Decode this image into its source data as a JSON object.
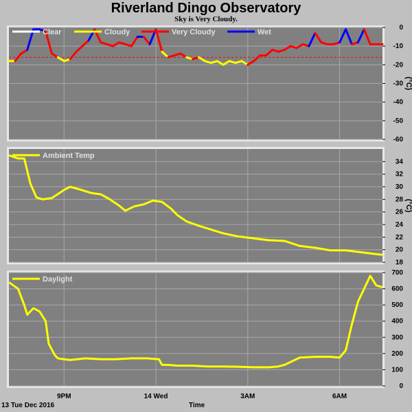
{
  "title": "Riverland Dingo Observatory",
  "subtitle": "Sky is Very Cloudy.",
  "footer": {
    "date_label": "13 Tue Dec 2016",
    "time_label": "Time"
  },
  "colors": {
    "panel": "#808080",
    "grid": "#a8a8a8",
    "clear": "#ffffff",
    "cloudy": "#ffff00",
    "very_cloudy": "#ff0000",
    "wet": "#0000ff",
    "threshold": "#ff0000"
  },
  "chart_data": [
    {
      "type": "line",
      "unit": "(°C)",
      "ylim": [
        -60,
        0
      ],
      "yticks": [
        0,
        -10,
        -20,
        -30,
        -40,
        -50,
        -60
      ],
      "xticks": [
        "9PM",
        "14 Wed",
        "3AM",
        "6AM"
      ],
      "legend": [
        "Clear",
        "Cloudy",
        "Very Cloudy",
        "Wet"
      ],
      "legend_colors": [
        "#ffffff",
        "#ffff00",
        "#ff0000",
        "#0000ff"
      ],
      "threshold": -16,
      "x_hours": [
        0,
        0.2,
        0.4,
        0.6,
        0.8,
        1.0,
        1.2,
        1.4,
        1.6,
        1.8,
        2.0,
        2.2,
        2.4,
        2.6,
        2.8,
        3.0,
        3.2,
        3.4,
        3.6,
        3.8,
        4.0,
        4.2,
        4.4,
        4.6,
        4.8,
        5.0,
        5.2,
        5.4,
        5.6,
        5.8,
        6.0,
        6.2,
        6.4,
        6.6,
        6.8,
        7.0,
        7.2,
        7.4,
        7.6,
        7.8,
        8.0,
        8.2,
        8.4,
        8.6,
        8.8,
        9.0,
        9.2,
        9.4,
        9.6,
        9.8,
        10.0,
        10.2,
        10.4,
        10.6,
        10.8,
        11.0,
        11.2,
        11.4,
        11.6,
        11.8,
        12.0,
        12.2
      ],
      "values": [
        -18,
        -18,
        -14,
        -12,
        -1,
        -1,
        -2,
        -14,
        -16,
        -18,
        -17,
        -13,
        -10,
        -7,
        -1,
        -8,
        -9,
        -10,
        -8,
        -9,
        -10,
        -5,
        -5,
        -9,
        -1,
        -13,
        -16,
        -15,
        -14,
        -16,
        -17,
        -16,
        -18,
        -19,
        -18,
        -20,
        -18,
        -19,
        -18,
        -20,
        -18,
        -15,
        -15,
        -12,
        -13,
        -12,
        -10,
        -11,
        -9,
        -10,
        -3,
        -8,
        -9,
        -9,
        -8,
        -1,
        -9,
        -8,
        -1,
        -9,
        -9,
        -9
      ],
      "conditions": [
        "Cloudy",
        "Cloudy",
        "Very Cloudy",
        "Very Cloudy",
        "Wet",
        "Wet",
        "Wet",
        "Very Cloudy",
        "Very Cloudy",
        "Cloudy",
        "Cloudy",
        "Very Cloudy",
        "Very Cloudy",
        "Very Cloudy",
        "Wet",
        "Very Cloudy",
        "Very Cloudy",
        "Very Cloudy",
        "Very Cloudy",
        "Very Cloudy",
        "Very Cloudy",
        "Very Cloudy",
        "Wet",
        "Very Cloudy",
        "Wet",
        "Very Cloudy",
        "Cloudy",
        "Very Cloudy",
        "Very Cloudy",
        "Very Cloudy",
        "Cloudy",
        "Very Cloudy",
        "Cloudy",
        "Cloudy",
        "Cloudy",
        "Cloudy",
        "Cloudy",
        "Cloudy",
        "Cloudy",
        "Cloudy",
        "Very Cloudy",
        "Very Cloudy",
        "Very Cloudy",
        "Very Cloudy",
        "Very Cloudy",
        "Very Cloudy",
        "Very Cloudy",
        "Very Cloudy",
        "Very Cloudy",
        "Very Cloudy",
        "Wet",
        "Very Cloudy",
        "Very Cloudy",
        "Very Cloudy",
        "Very Cloudy",
        "Wet",
        "Wet",
        "Very Cloudy",
        "Wet",
        "Very Cloudy",
        "Very Cloudy",
        "Very Cloudy"
      ]
    },
    {
      "type": "line",
      "unit": "(°C)",
      "ylim": [
        18,
        36
      ],
      "yticks": [
        18,
        20,
        22,
        24,
        26,
        28,
        30,
        32,
        34
      ],
      "xticks": [
        "9PM",
        "14 Wed",
        "3AM",
        "6AM"
      ],
      "series": [
        {
          "name": "Ambient Temp",
          "x_hours": [
            0,
            0.3,
            0.5,
            0.7,
            0.9,
            1.1,
            1.4,
            1.8,
            2.0,
            2.3,
            2.7,
            3.0,
            3.3,
            3.6,
            3.8,
            4.1,
            4.4,
            4.7,
            5.0,
            5.3,
            5.5,
            5.8,
            6.2,
            6.6,
            7.0,
            7.5,
            8.0,
            8.5,
            9.0,
            9.5,
            10.0,
            10.5,
            11.0,
            11.5,
            12.0,
            12.2
          ],
          "values": [
            35.0,
            34.5,
            34.5,
            30.5,
            28.3,
            28.0,
            28.2,
            29.5,
            30.0,
            29.6,
            29.0,
            28.8,
            28.0,
            27.0,
            26.2,
            26.9,
            27.2,
            27.8,
            27.6,
            26.5,
            25.5,
            24.5,
            23.8,
            23.2,
            22.6,
            22.1,
            21.8,
            21.5,
            21.4,
            20.6,
            20.3,
            19.9,
            19.9,
            19.6,
            19.3,
            19.2
          ]
        }
      ]
    },
    {
      "type": "line",
      "unit": "",
      "ylim": [
        0,
        700
      ],
      "yticks": [
        0,
        100,
        200,
        300,
        400,
        500,
        600,
        700
      ],
      "xticks": [
        "9PM",
        "14 Wed",
        "3AM",
        "6AM"
      ],
      "series": [
        {
          "name": "Daylight",
          "x_hours": [
            0,
            0.3,
            0.5,
            0.6,
            0.8,
            1.0,
            1.2,
            1.3,
            1.5,
            1.6,
            1.8,
            2.0,
            2.5,
            3.0,
            3.5,
            4.0,
            4.5,
            4.9,
            5.0,
            5.2,
            5.5,
            6.0,
            6.5,
            7.0,
            7.5,
            8.0,
            8.5,
            8.8,
            9.0,
            9.5,
            10.0,
            10.5,
            10.8,
            11.0,
            11.2,
            11.4,
            11.6,
            11.8,
            12.0,
            12.2
          ],
          "values": [
            640,
            600,
            500,
            440,
            480,
            460,
            400,
            260,
            190,
            170,
            165,
            160,
            170,
            165,
            165,
            170,
            170,
            165,
            130,
            130,
            125,
            125,
            120,
            120,
            118,
            115,
            115,
            120,
            130,
            175,
            180,
            180,
            175,
            220,
            380,
            520,
            600,
            680,
            620,
            610
          ]
        }
      ]
    }
  ]
}
